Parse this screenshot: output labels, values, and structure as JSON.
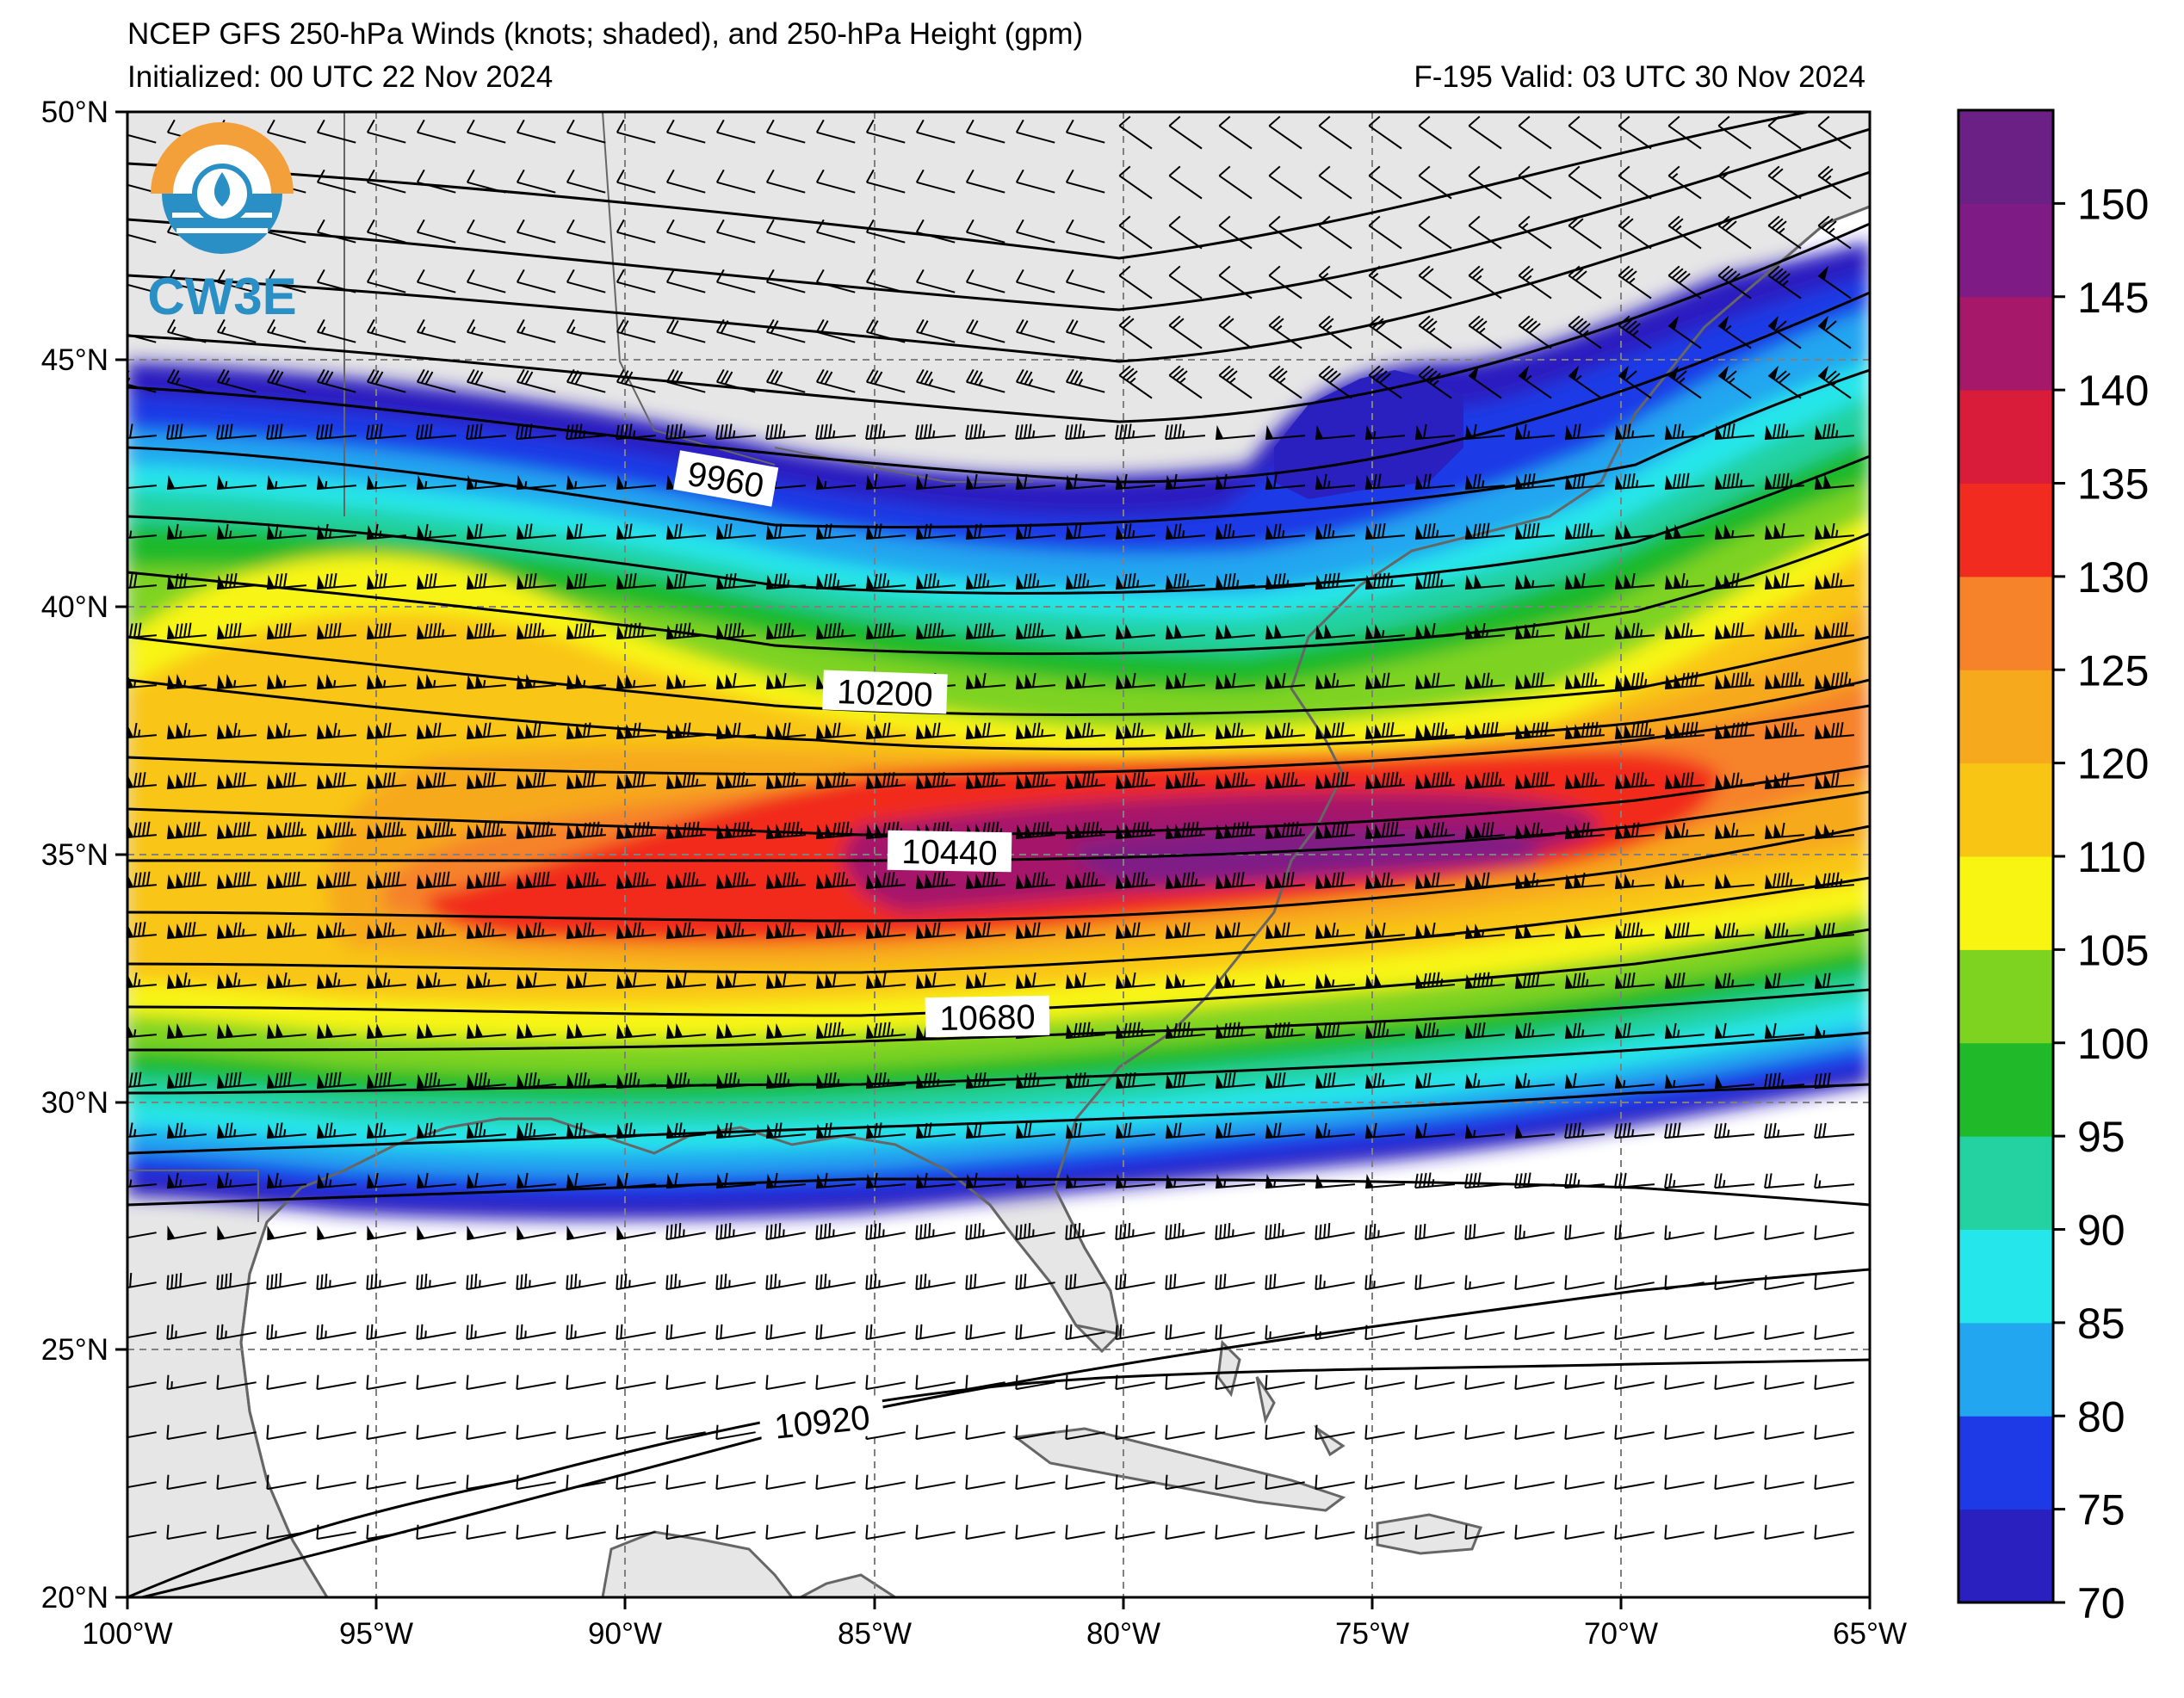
{
  "title": {
    "line1": "NCEP GFS 250-hPa Winds (knots; shaded), and 250-hPa Height (gpm)",
    "initialized": "Initialized: 00 UTC 22 Nov 2024",
    "valid": "F-195  Valid: 03 UTC 30 Nov 2024"
  },
  "logo": {
    "text": "CW3E",
    "icon": "cw3e-water-drop-logo-icon"
  },
  "axes": {
    "lat_labels": [
      "50°N",
      "45°N",
      "40°N",
      "35°N",
      "30°N",
      "25°N",
      "20°N"
    ],
    "lon_labels": [
      "100°W",
      "95°W",
      "90°W",
      "85°W",
      "80°W",
      "75°W",
      "70°W",
      "65°W"
    ],
    "lat_range": [
      20,
      50
    ],
    "lon_range": [
      -100,
      -65
    ]
  },
  "colorbar": {
    "labels": [
      "70",
      "75",
      "80",
      "85",
      "90",
      "95",
      "100",
      "105",
      "110",
      "120",
      "125",
      "130",
      "135",
      "140",
      "145",
      "150"
    ],
    "colors": [
      "#2a1fbf",
      "#1e3ae6",
      "#22a6f0",
      "#25e6ea",
      "#24d1a0",
      "#1fb92a",
      "#7ed321",
      "#f8f512",
      "#f9c514",
      "#f7a91d",
      "#f6822a",
      "#f12b1f",
      "#d91c3a",
      "#a5186a",
      "#7f1b85",
      "#6b2086"
    ]
  },
  "contours": {
    "labels": [
      "9960",
      "10200",
      "10440",
      "10680",
      "10920"
    ]
  }
}
